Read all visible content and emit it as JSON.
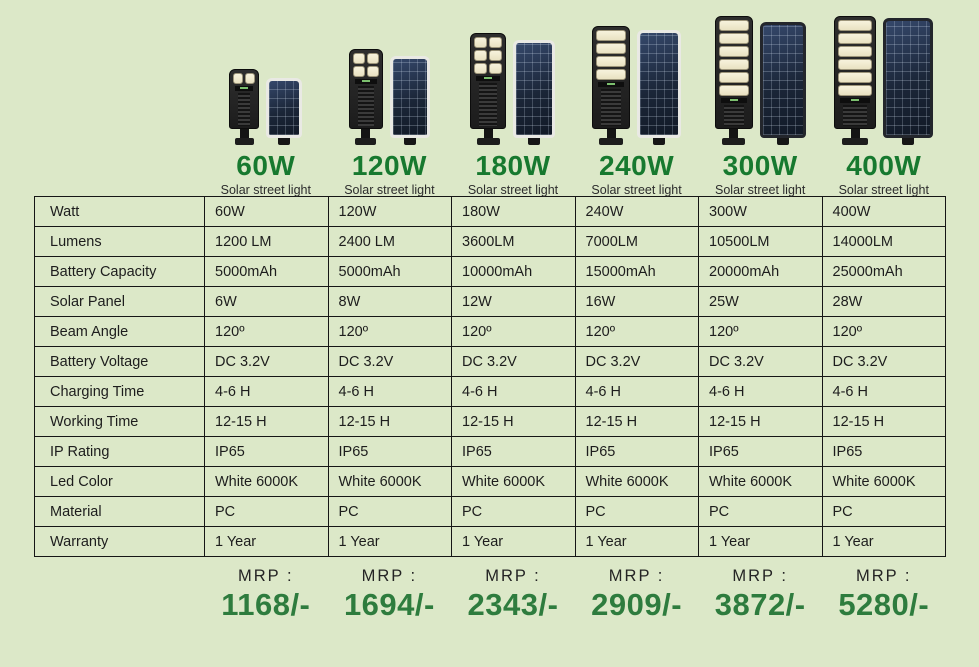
{
  "colors": {
    "bg": "#dce8c8",
    "heading-green": "#17792f",
    "price-green": "#2e7c3e",
    "table-line": "#161616"
  },
  "products": [
    {
      "watt": "60W",
      "subtitle": "Solar street light",
      "mrp_label": "MRP :",
      "price": "1168/-",
      "depiction": {
        "icon": "street-light-with-solar-panel",
        "led_rows": 1,
        "led_cols": 2,
        "panel_frame": "light"
      }
    },
    {
      "watt": "120W",
      "subtitle": "Solar street light",
      "mrp_label": "MRP :",
      "price": "1694/-",
      "depiction": {
        "icon": "street-light-with-solar-panel",
        "led_rows": 2,
        "led_cols": 2,
        "panel_frame": "light"
      }
    },
    {
      "watt": "180W",
      "subtitle": "Solar street light",
      "mrp_label": "MRP :",
      "price": "2343/-",
      "depiction": {
        "icon": "street-light-with-solar-panel",
        "led_rows": 3,
        "led_cols": 2,
        "panel_frame": "light"
      }
    },
    {
      "watt": "240W",
      "subtitle": "Solar street light",
      "mrp_label": "MRP :",
      "price": "2909/-",
      "depiction": {
        "icon": "street-light-with-solar-panel",
        "led_rows": 4,
        "led_cols": 1,
        "panel_frame": "light"
      }
    },
    {
      "watt": "300W",
      "subtitle": "Solar street light",
      "mrp_label": "MRP :",
      "price": "3872/-",
      "depiction": {
        "icon": "street-light-with-solar-panel",
        "led_rows": 6,
        "led_cols": 1,
        "panel_frame": "dark"
      }
    },
    {
      "watt": "400W",
      "subtitle": "Solar street light",
      "mrp_label": "MRP :",
      "price": "5280/-",
      "depiction": {
        "icon": "street-light-with-solar-panel",
        "led_rows": 6,
        "led_cols": 1,
        "panel_frame": "dark"
      }
    }
  ],
  "table": {
    "rows": [
      {
        "label": "Watt",
        "values": [
          "60W",
          "120W",
          "180W",
          "240W",
          "300W",
          "400W"
        ]
      },
      {
        "label": "Lumens",
        "values": [
          "1200 LM",
          "2400 LM",
          "3600LM",
          "7000LM",
          "10500LM",
          "14000LM"
        ]
      },
      {
        "label": "Battery Capacity",
        "values": [
          "5000mAh",
          "5000mAh",
          "10000mAh",
          "15000mAh",
          "20000mAh",
          "25000mAh"
        ]
      },
      {
        "label": "Solar Panel",
        "values": [
          "6W",
          "8W",
          "12W",
          "16W",
          "25W",
          "28W"
        ]
      },
      {
        "label": "Beam Angle",
        "values": [
          "120º",
          "120º",
          "120º",
          "120º",
          "120º",
          "120º"
        ]
      },
      {
        "label": "Battery Voltage",
        "values": [
          "DC 3.2V",
          "DC 3.2V",
          "DC 3.2V",
          "DC 3.2V",
          "DC 3.2V",
          "DC 3.2V"
        ]
      },
      {
        "label": "Charging Time",
        "values": [
          "4-6 H",
          "4-6 H",
          "4-6 H",
          "4-6 H",
          "4-6 H",
          "4-6 H"
        ]
      },
      {
        "label": "Working Time",
        "values": [
          "12-15 H",
          "12-15 H",
          "12-15 H",
          "12-15 H",
          "12-15 H",
          "12-15 H"
        ]
      },
      {
        "label": "IP Rating",
        "values": [
          "IP65",
          "IP65",
          "IP65",
          "IP65",
          "IP65",
          "IP65"
        ]
      },
      {
        "label": "Led Color",
        "values": [
          "White 6000K",
          "White 6000K",
          "White 6000K",
          "White 6000K",
          "White 6000K",
          "White 6000K"
        ]
      },
      {
        "label": "Material",
        "values": [
          "PC",
          "PC",
          "PC",
          "PC",
          "PC",
          "PC"
        ]
      },
      {
        "label": "Warranty",
        "values": [
          "1 Year",
          "1 Year",
          "1 Year",
          "1 Year",
          "1 Year",
          "1 Year"
        ]
      }
    ]
  }
}
